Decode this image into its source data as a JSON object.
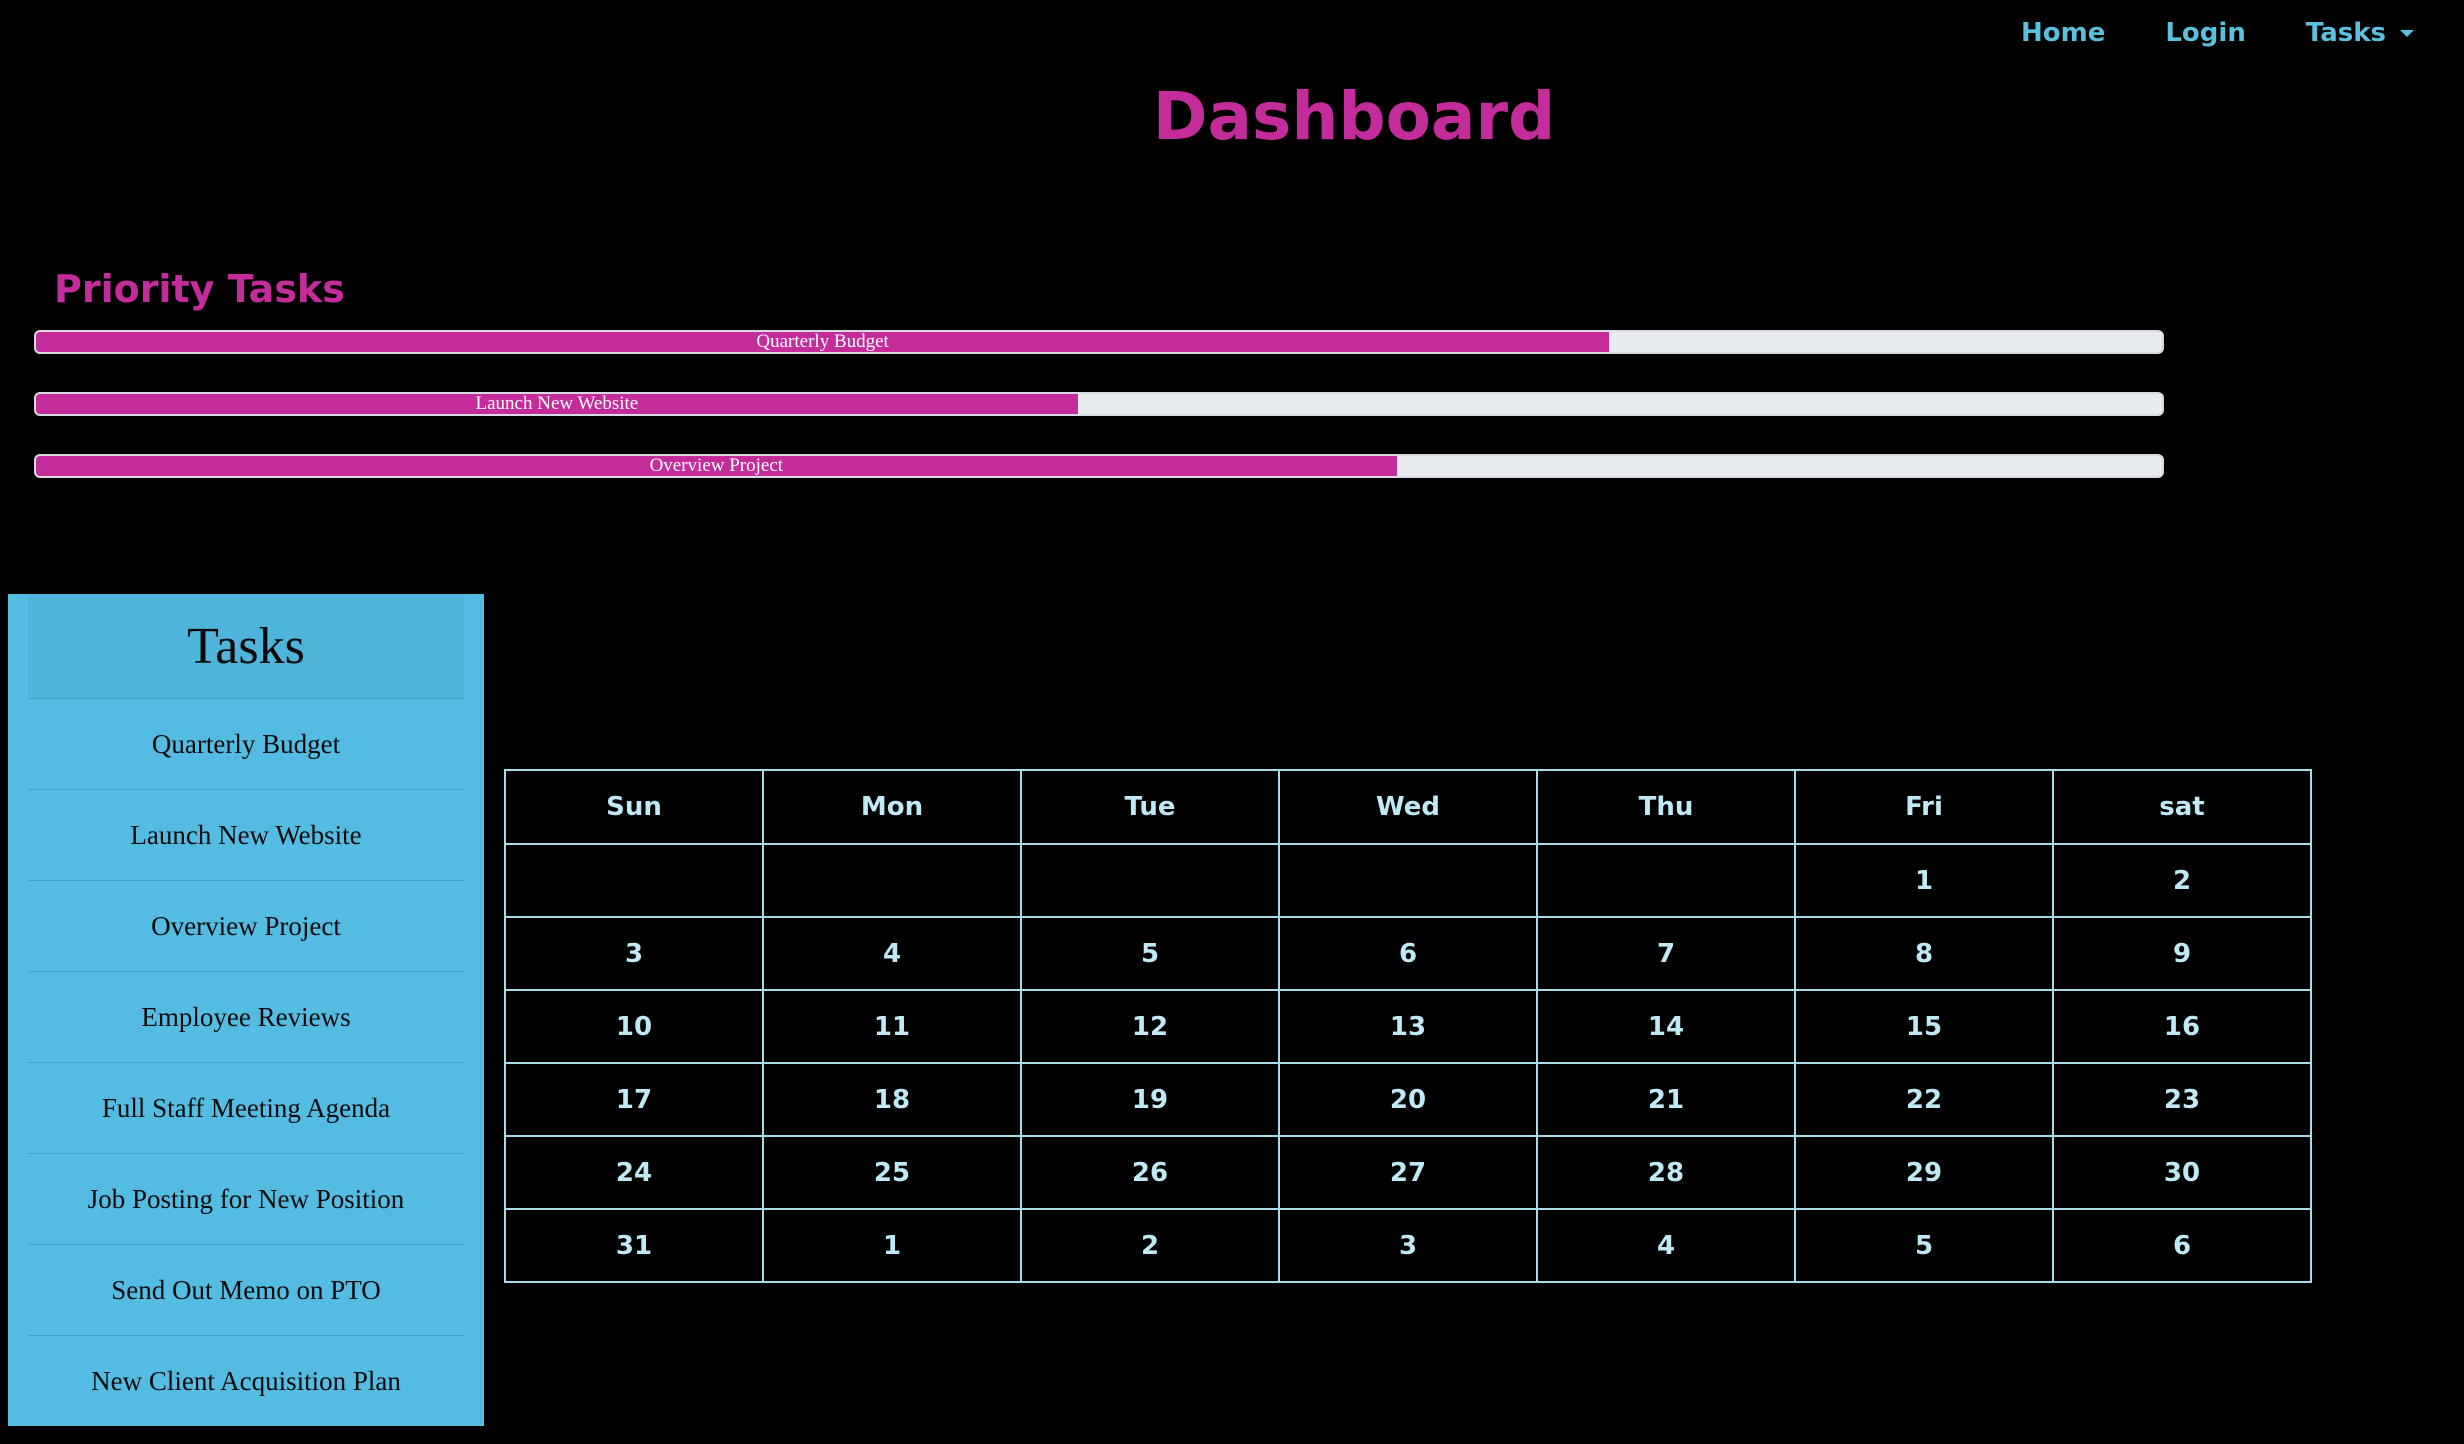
{
  "nav": {
    "home": "Home",
    "login": "Login",
    "tasks": "Tasks"
  },
  "title": "Dashboard",
  "priority": {
    "heading": "Priority Tasks",
    "items": [
      {
        "label": "Quarterly Budget",
        "progress": 0.74
      },
      {
        "label": "Launch New Website",
        "progress": 0.49
      },
      {
        "label": "Overview Project",
        "progress": 0.64
      }
    ]
  },
  "sidebar": {
    "heading": "Tasks",
    "items": [
      {
        "label": "Quarterly Budget"
      },
      {
        "label": "Launch New Website"
      },
      {
        "label": "Overview Project"
      },
      {
        "label": "Employee Reviews"
      },
      {
        "label": "Full Staff Meeting Agenda"
      },
      {
        "label": "Job Posting for New Position"
      },
      {
        "label": "Send Out Memo on PTO"
      },
      {
        "label": "New Client Acquisition Plan"
      }
    ]
  },
  "calendar": {
    "days": [
      "Sun",
      "Mon",
      "Tue",
      "Wed",
      "Thu",
      "Fri",
      "sat"
    ],
    "weeks": [
      [
        "",
        "",
        "",
        "",
        "",
        "1",
        "2"
      ],
      [
        "3",
        "4",
        "5",
        "6",
        "7",
        "8",
        "9"
      ],
      [
        "10",
        "11",
        "12",
        "13",
        "14",
        "15",
        "16"
      ],
      [
        "17",
        "18",
        "19",
        "20",
        "21",
        "22",
        "23"
      ],
      [
        "24",
        "25",
        "26",
        "27",
        "28",
        "29",
        "30"
      ],
      [
        "31",
        "1",
        "2",
        "3",
        "4",
        "5",
        "6"
      ]
    ]
  },
  "colors": {
    "accent": "#c42c9c",
    "nav": "#5bc0de",
    "sidebar": "#54bce2",
    "calendar_text": "#bfe9f5"
  }
}
